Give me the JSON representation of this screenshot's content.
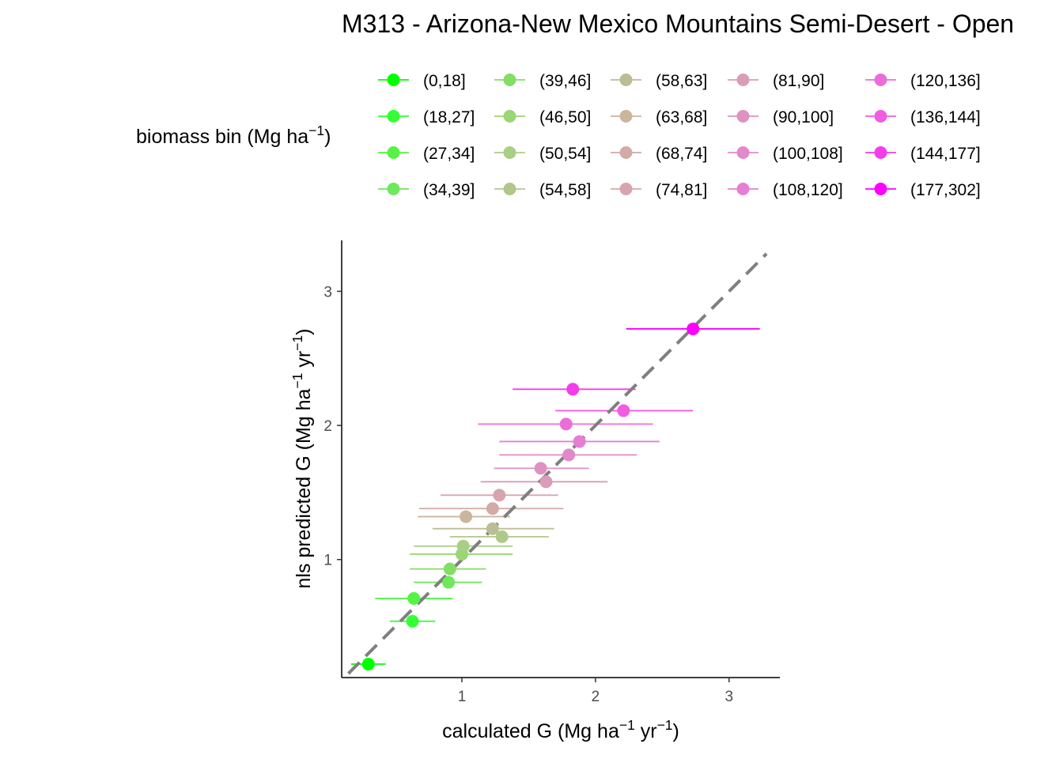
{
  "chart_data": {
    "type": "scatter",
    "title": "M313 - Arizona-New Mexico Mountains Semi-Desert - Open",
    "xlabel": "calculated G (Mg ha⁻¹ yr⁻¹)",
    "ylabel": "nls predicted G (Mg ha⁻¹ yr⁻¹)",
    "xlim": [
      0.1,
      3.38
    ],
    "ylim": [
      0.12,
      3.38
    ],
    "xticks": [
      1,
      2,
      3
    ],
    "yticks": [
      1,
      2,
      3
    ],
    "grid": false,
    "legend": {
      "title": "biomass bin (Mg ha⁻¹)",
      "position": "top",
      "columns": 5
    },
    "reference_line": {
      "type": "identity",
      "style": "dashed",
      "color": "#7f7f7f"
    },
    "series": [
      {
        "name": "(0,18]",
        "color": "#00FF00",
        "x": 0.3,
        "y": 0.22,
        "xmin": 0.17,
        "xmax": 0.43
      },
      {
        "name": "(18,27]",
        "color": "#33FF33",
        "x": 0.63,
        "y": 0.54,
        "xmin": 0.46,
        "xmax": 0.8
      },
      {
        "name": "(27,34]",
        "color": "#55F345",
        "x": 0.64,
        "y": 0.71,
        "xmin": 0.35,
        "xmax": 0.93
      },
      {
        "name": "(34,39]",
        "color": "#6FE85B",
        "x": 0.9,
        "y": 0.83,
        "xmin": 0.64,
        "xmax": 1.15
      },
      {
        "name": "(39,46]",
        "color": "#84DD66",
        "x": 0.91,
        "y": 0.93,
        "xmin": 0.61,
        "xmax": 1.18
      },
      {
        "name": "(46,50]",
        "color": "#9AD675",
        "x": 1.0,
        "y": 1.04,
        "xmin": 0.61,
        "xmax": 1.38
      },
      {
        "name": "(50,54]",
        "color": "#A9CF84",
        "x": 1.01,
        "y": 1.1,
        "xmin": 0.64,
        "xmax": 1.38
      },
      {
        "name": "(54,58]",
        "color": "#B0C88A",
        "x": 1.3,
        "y": 1.17,
        "xmin": 0.91,
        "xmax": 1.65
      },
      {
        "name": "(58,63]",
        "color": "#BDBD95",
        "x": 1.23,
        "y": 1.23,
        "xmin": 0.78,
        "xmax": 1.69
      },
      {
        "name": "(63,68]",
        "color": "#CBB59D",
        "x": 1.03,
        "y": 1.32,
        "xmin": 0.67,
        "xmax": 1.36
      },
      {
        "name": "(68,74]",
        "color": "#D2AAA6",
        "x": 1.23,
        "y": 1.38,
        "xmin": 0.68,
        "xmax": 1.76
      },
      {
        "name": "(74,81]",
        "color": "#D7A5B0",
        "x": 1.28,
        "y": 1.48,
        "xmin": 0.84,
        "xmax": 1.72
      },
      {
        "name": "(81,90]",
        "color": "#D99CB9",
        "x": 1.63,
        "y": 1.58,
        "xmin": 1.14,
        "xmax": 2.09
      },
      {
        "name": "(90,100]",
        "color": "#DD92C2",
        "x": 1.59,
        "y": 1.68,
        "xmin": 1.24,
        "xmax": 1.95
      },
      {
        "name": "(100,108]",
        "color": "#E389CB",
        "x": 1.8,
        "y": 1.78,
        "xmin": 1.28,
        "xmax": 2.31
      },
      {
        "name": "(108,120]",
        "color": "#E67FD3",
        "x": 1.88,
        "y": 1.88,
        "xmin": 1.28,
        "xmax": 2.48
      },
      {
        "name": "(120,136]",
        "color": "#EC6DDA",
        "x": 1.78,
        "y": 2.01,
        "xmin": 1.12,
        "xmax": 2.43
      },
      {
        "name": "(136,144]",
        "color": "#F05CE2",
        "x": 2.21,
        "y": 2.11,
        "xmin": 1.7,
        "xmax": 2.73
      },
      {
        "name": "(144,177]",
        "color": "#F53CEB",
        "x": 1.83,
        "y": 2.27,
        "xmin": 1.38,
        "xmax": 2.3
      },
      {
        "name": "(177,302]",
        "color": "#FF00FF",
        "x": 2.73,
        "y": 2.72,
        "xmin": 2.23,
        "xmax": 3.23
      }
    ]
  }
}
